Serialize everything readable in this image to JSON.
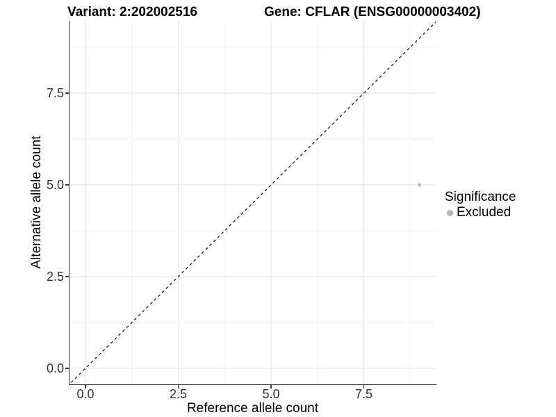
{
  "chart_data": {
    "type": "scatter",
    "title_left": "Variant: 2:202002516",
    "title_right": "Gene: CFLAR (ENSG00000003402)",
    "x_axis": {
      "label": "Reference allele count",
      "major_ticks": [
        {
          "value": 0,
          "label": "0.0"
        },
        {
          "value": 2.5,
          "label": "2.5"
        },
        {
          "value": 5,
          "label": "5.0"
        },
        {
          "value": 7.5,
          "label": "7.5"
        }
      ],
      "minor_ticks": [
        1.25,
        3.75,
        6.25,
        8.75
      ],
      "range": [
        -0.45,
        9.45
      ]
    },
    "y_axis": {
      "label": "Alternative allele count",
      "major_ticks": [
        {
          "value": 0,
          "label": "0.0"
        },
        {
          "value": 2.5,
          "label": "2.5"
        },
        {
          "value": 5,
          "label": "5.0"
        },
        {
          "value": 7.5,
          "label": "7.5"
        }
      ],
      "minor_ticks": [
        1.25,
        3.75,
        6.25,
        8.75
      ],
      "range": [
        -0.45,
        9.9
      ]
    },
    "identity_line": {
      "style": "dashed",
      "equation": "y = x"
    },
    "points": [
      {
        "x": 9,
        "y": 5,
        "significance": "Excluded"
      }
    ],
    "legend": {
      "title": "Significance",
      "position": "right",
      "items": [
        {
          "label": "Excluded",
          "color": "#b3b3b3"
        }
      ]
    },
    "grid": "major+minor, light gray on white"
  },
  "colors": {
    "background": "#ffffff",
    "grid_major": "#e7e7e7",
    "grid_minor": "#f2f2f2",
    "axis_line": "#333333",
    "tick_text": "#333333",
    "title_text": "#000000",
    "point": "#b3b3b3",
    "identity_line": "#1a1a1a"
  }
}
